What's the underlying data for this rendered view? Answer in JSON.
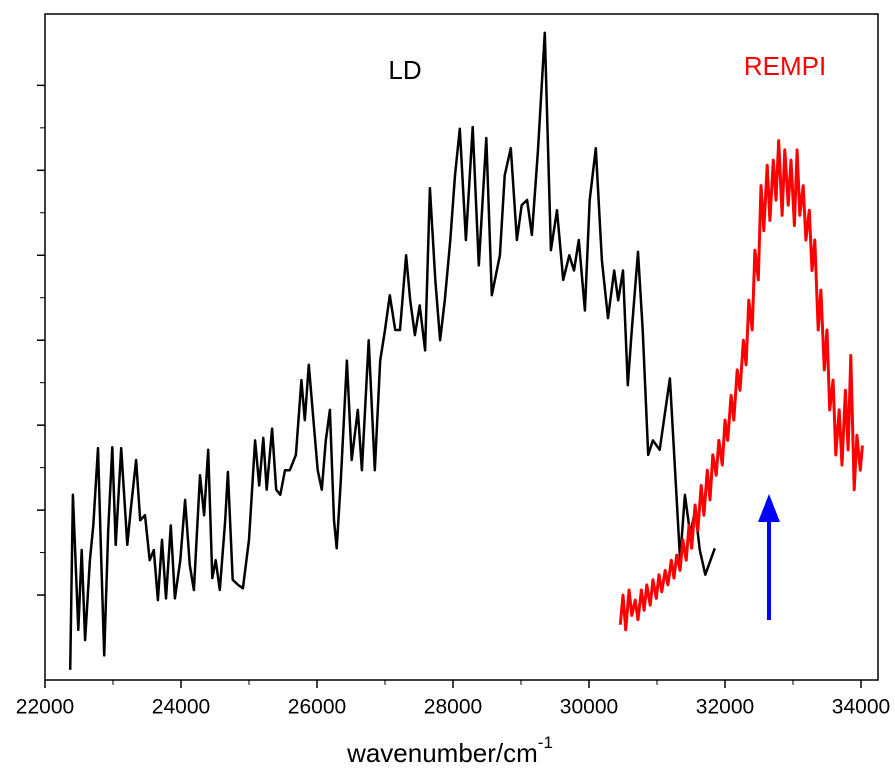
{
  "chart_data": {
    "type": "line",
    "x_label": "wavenumber/cm",
    "x_label_superscript": "-1",
    "xlim": [
      22000,
      34250
    ],
    "xticks": [
      22000,
      24000,
      26000,
      28000,
      30000,
      32000,
      34000
    ],
    "ylim": [
      0,
      7.84
    ],
    "yticks": [
      1,
      2,
      3,
      4,
      5,
      6,
      7
    ],
    "series": [
      {
        "name": "LD",
        "color": "#000000",
        "x": [
          22370,
          22410,
          22490,
          22540,
          22590,
          22660,
          22710,
          22780,
          22820,
          22870,
          22930,
          22990,
          23040,
          23120,
          23210,
          23260,
          23340,
          23400,
          23470,
          23540,
          23600,
          23660,
          23720,
          23780,
          23850,
          23910,
          23990,
          24060,
          24130,
          24190,
          24280,
          24340,
          24400,
          24460,
          24510,
          24570,
          24650,
          24690,
          24760,
          24840,
          24910,
          25000,
          25090,
          25150,
          25210,
          25260,
          25340,
          25400,
          25460,
          25530,
          25600,
          25690,
          25770,
          25820,
          25880,
          25960,
          26010,
          26070,
          26130,
          26190,
          26250,
          26290,
          26350,
          26440,
          26510,
          26600,
          26660,
          26760,
          26850,
          26930,
          27000,
          27070,
          27150,
          27220,
          27310,
          27370,
          27440,
          27510,
          27590,
          27660,
          27740,
          27810,
          27880,
          27960,
          28030,
          28100,
          28190,
          28290,
          28380,
          28490,
          28570,
          28690,
          28760,
          28850,
          28940,
          29010,
          29090,
          29160,
          29250,
          29350,
          29440,
          29530,
          29620,
          29710,
          29780,
          29850,
          29940,
          30010,
          30100,
          30190,
          30280,
          30370,
          30430,
          30500,
          30570,
          30630,
          30720,
          30790,
          30870,
          30940,
          31040,
          31190,
          31340,
          31410,
          31490,
          31560,
          31630,
          31710,
          31850
        ],
        "values": [
          0.12,
          2.18,
          0.59,
          1.53,
          0.47,
          1.41,
          1.82,
          2.73,
          1.59,
          0.29,
          1.76,
          2.74,
          1.59,
          2.73,
          1.59,
          2.0,
          2.59,
          1.88,
          1.94,
          1.41,
          1.53,
          0.94,
          1.65,
          0.96,
          1.82,
          0.96,
          1.41,
          2.12,
          1.35,
          1.06,
          2.41,
          1.94,
          2.71,
          1.2,
          1.41,
          1.06,
          1.88,
          2.45,
          1.18,
          1.12,
          1.08,
          1.65,
          2.82,
          2.29,
          2.85,
          2.24,
          2.96,
          2.24,
          2.18,
          2.47,
          2.47,
          2.65,
          3.53,
          3.06,
          3.71,
          2.94,
          2.47,
          2.24,
          2.82,
          3.18,
          1.88,
          1.55,
          2.35,
          3.76,
          2.59,
          3.18,
          2.47,
          4.0,
          2.47,
          3.76,
          4.12,
          4.53,
          4.12,
          4.12,
          5.0,
          4.47,
          4.06,
          4.41,
          3.88,
          5.79,
          4.71,
          4.0,
          4.47,
          5.18,
          5.94,
          6.49,
          5.18,
          6.51,
          4.88,
          6.38,
          4.53,
          5.0,
          5.94,
          6.26,
          5.18,
          5.59,
          5.65,
          5.24,
          6.24,
          7.62,
          5.06,
          5.53,
          4.71,
          5.0,
          4.82,
          5.18,
          4.35,
          5.65,
          6.26,
          4.94,
          4.26,
          4.82,
          4.47,
          4.82,
          3.47,
          4.12,
          5.04,
          4.12,
          2.65,
          2.82,
          2.71,
          3.55,
          1.41,
          2.18,
          1.71,
          2.0,
          1.53,
          1.24,
          1.55
        ]
      },
      {
        "name": "REMPI",
        "color": "#ff0000",
        "x": [
          30460,
          30500,
          30540,
          30590,
          30630,
          30680,
          30720,
          30770,
          30810,
          30850,
          30900,
          30940,
          30990,
          31030,
          31070,
          31120,
          31160,
          31210,
          31250,
          31290,
          31340,
          31380,
          31430,
          31470,
          31510,
          31560,
          31600,
          31650,
          31690,
          31740,
          31780,
          31820,
          31870,
          31910,
          31960,
          32000,
          32040,
          32090,
          32130,
          32180,
          32220,
          32270,
          32310,
          32350,
          32400,
          32440,
          32490,
          32530,
          32570,
          32620,
          32660,
          32710,
          32750,
          32790,
          32840,
          32880,
          32930,
          32970,
          33020,
          33060,
          33100,
          33150,
          33190,
          33240,
          33280,
          33320,
          33370,
          33410,
          33460,
          33500,
          33540,
          33590,
          33630,
          33680,
          33720,
          33770,
          33810,
          33850,
          33900,
          33940,
          33990,
          34020
        ],
        "values": [
          0.65,
          1.0,
          0.59,
          1.06,
          0.76,
          0.94,
          0.71,
          1.06,
          0.82,
          1.12,
          0.88,
          1.18,
          0.96,
          1.24,
          1.04,
          1.29,
          1.12,
          1.41,
          1.2,
          1.47,
          1.29,
          1.65,
          1.41,
          1.82,
          1.55,
          2.06,
          1.76,
          2.29,
          1.94,
          2.47,
          2.12,
          2.65,
          2.41,
          2.82,
          2.53,
          3.06,
          2.82,
          3.35,
          3.06,
          3.65,
          3.41,
          4.0,
          3.71,
          4.47,
          4.12,
          5.06,
          4.71,
          5.82,
          5.29,
          6.06,
          5.41,
          6.12,
          5.65,
          6.35,
          5.47,
          6.24,
          5.59,
          6.12,
          5.35,
          6.24,
          5.47,
          5.82,
          5.18,
          5.53,
          4.82,
          5.18,
          4.12,
          4.59,
          3.65,
          4.12,
          3.18,
          3.53,
          2.65,
          3.18,
          2.53,
          3.41,
          2.71,
          3.82,
          2.24,
          2.88,
          2.47,
          2.76
        ]
      }
    ]
  }
}
